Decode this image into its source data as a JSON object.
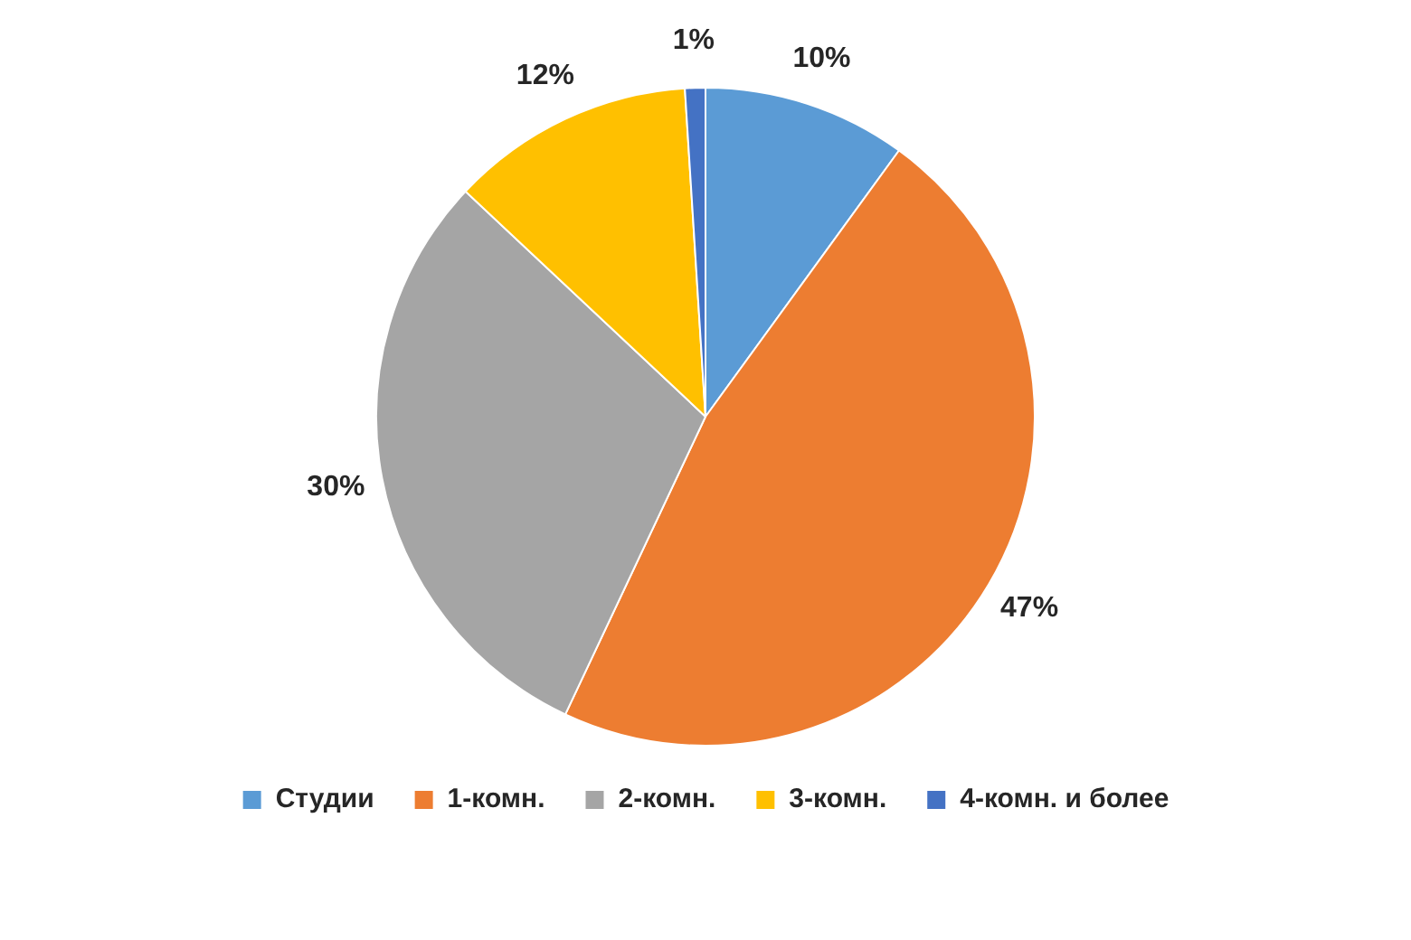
{
  "chart_data": {
    "type": "pie",
    "categories": [
      "Студии",
      "1-комн.",
      "2-комн.",
      "3-комн.",
      "4-комн. и более"
    ],
    "values": [
      10,
      47,
      30,
      12,
      1
    ],
    "value_labels": [
      "10%",
      "47%",
      "30%",
      "12%",
      "1%"
    ],
    "colors": [
      "#5b9bd5",
      "#ed7d31",
      "#a5a5a5",
      "#ffc000",
      "#4472c4"
    ],
    "legend": "bottom"
  }
}
